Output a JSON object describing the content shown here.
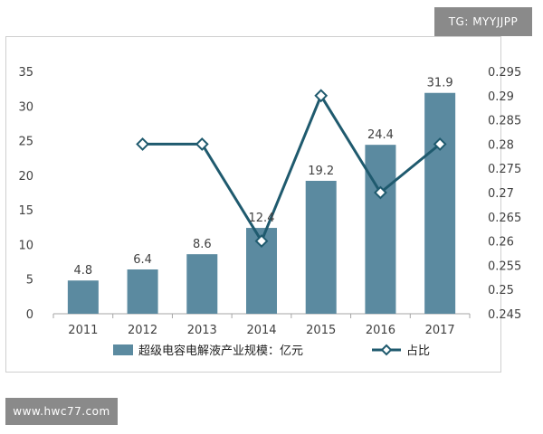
{
  "watermark_top": "TG: MYYJJPP",
  "watermark_bottom": "www.hwc77.com",
  "chart_data": {
    "type": "bar",
    "categories": [
      "2011",
      "2012",
      "2013",
      "2014",
      "2015",
      "2016",
      "2017"
    ],
    "series": [
      {
        "name": "超级电容电解液产业规模：亿元",
        "type": "bar",
        "axis": "left",
        "values": [
          4.8,
          6.4,
          8.6,
          12.4,
          19.2,
          24.4,
          31.9
        ],
        "labels": [
          "4.8",
          "6.4",
          "8.6",
          "12.4",
          "19.2",
          "24.4",
          "31.9"
        ]
      },
      {
        "name": "占比",
        "type": "line",
        "axis": "right",
        "values": [
          null,
          0.28,
          0.28,
          0.26,
          0.29,
          0.27,
          0.28
        ]
      }
    ],
    "ylim": [
      0,
      35
    ],
    "yticks": [
      "0",
      "5",
      "10",
      "15",
      "20",
      "25",
      "30",
      "35"
    ],
    "y2lim": [
      0.245,
      0.295
    ],
    "y2ticks": [
      "0.245",
      "0.25",
      "0.255",
      "0.26",
      "0.265",
      "0.27",
      "0.275",
      "0.28",
      "0.285",
      "0.29",
      "0.295"
    ],
    "grid": false,
    "legend": "bottom",
    "colors": {
      "bar": "#5b8aa0",
      "line": "#1f5a6e",
      "axis": "#a6a6a6",
      "marker_fill": "#ffffff"
    }
  }
}
